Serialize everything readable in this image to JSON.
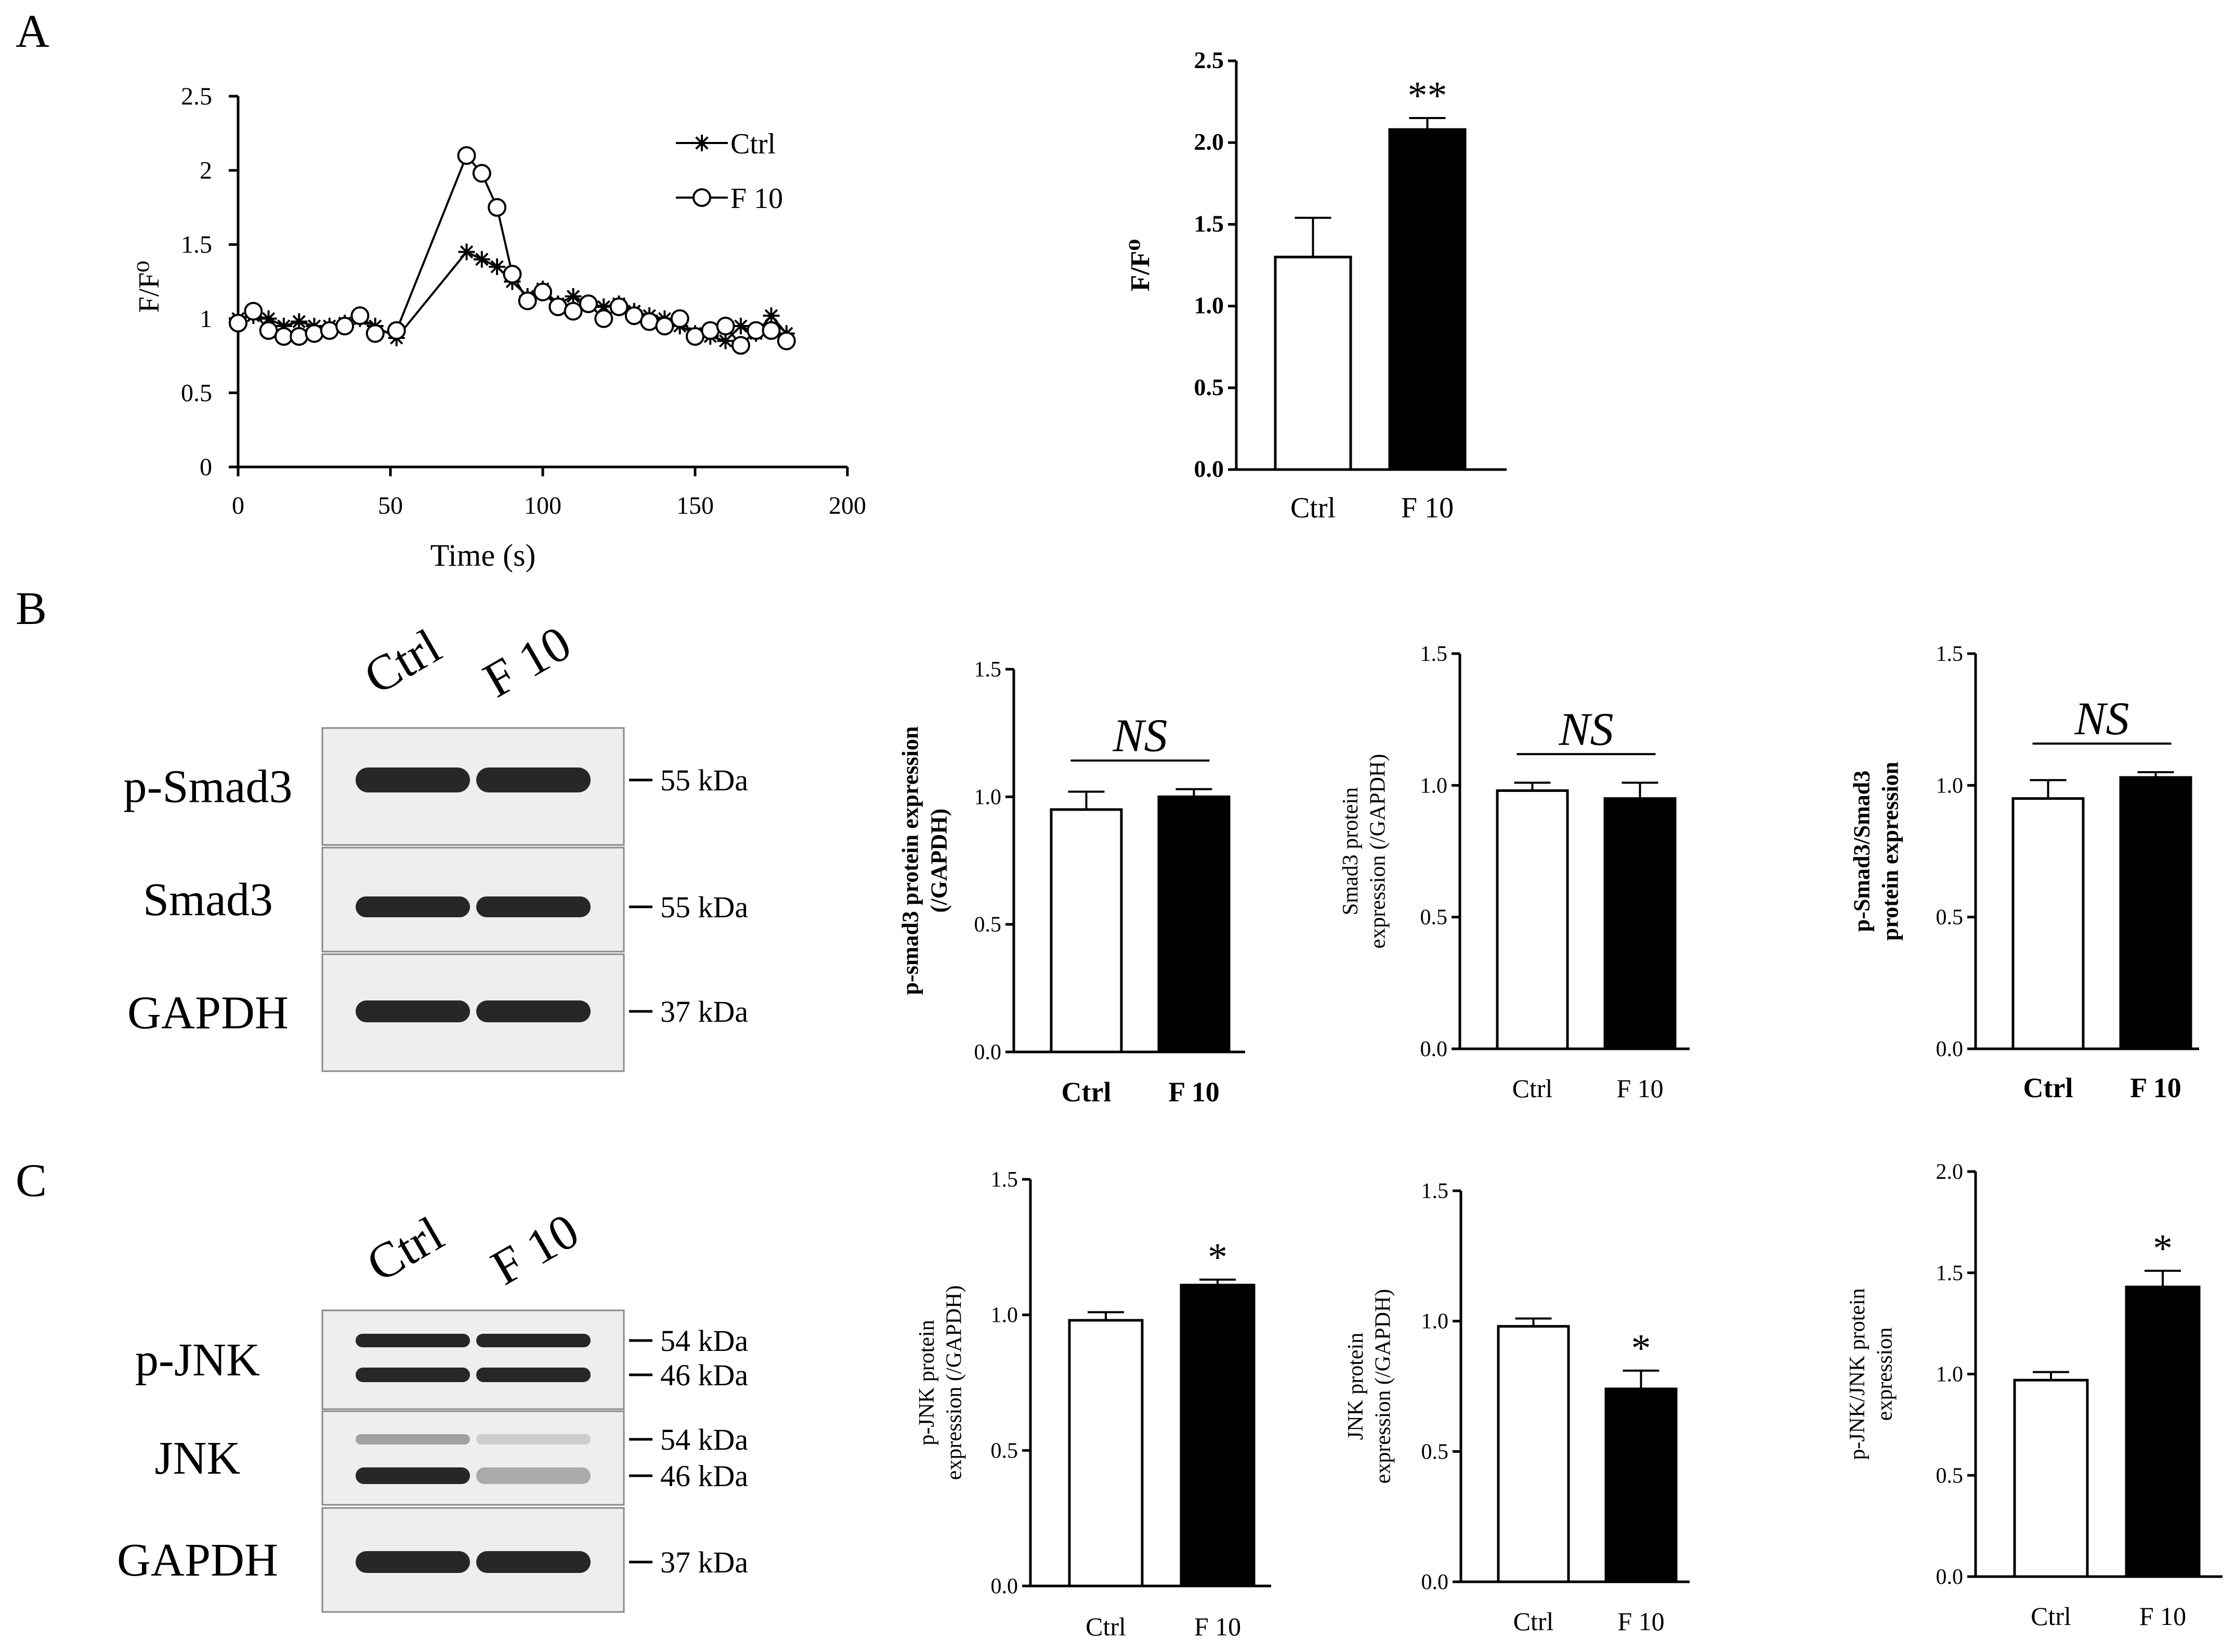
{
  "panel_labels": {
    "a": "A",
    "b": "B",
    "c": "C"
  },
  "blots": {
    "B": {
      "lanes": [
        "Ctrl",
        "F 10"
      ],
      "rows": [
        {
          "label": "p-Smad3",
          "markers": [
            "55 kDa"
          ]
        },
        {
          "label": "Smad3",
          "markers": [
            "55 kDa"
          ]
        },
        {
          "label": "GAPDH",
          "markers": [
            "37 kDa"
          ]
        }
      ]
    },
    "C": {
      "lanes": [
        "Ctrl",
        "F 10"
      ],
      "rows": [
        {
          "label": "p-JNK",
          "markers": [
            "54 kDa",
            "46 kDa"
          ]
        },
        {
          "label": "JNK",
          "markers": [
            "54 kDa",
            "46 kDa"
          ]
        },
        {
          "label": "GAPDH",
          "markers": [
            "37 kDa"
          ]
        }
      ]
    }
  },
  "chart_data": [
    {
      "id": "A_line",
      "type": "line",
      "xlabel": "Time (s)",
      "ylabel": "F/F⁰",
      "xlim": [
        0,
        200
      ],
      "ylim": [
        0,
        2.5
      ],
      "xticks": [
        "0",
        "50",
        "100",
        "150",
        "200"
      ],
      "yticks": [
        "0",
        "0.5",
        "1",
        "1.5",
        "2",
        "2.5"
      ],
      "legend": [
        "Ctrl",
        "F 10"
      ],
      "series": [
        {
          "name": "Ctrl",
          "marker": "star",
          "x": [
            0,
            5,
            10,
            15,
            20,
            25,
            30,
            35,
            40,
            45,
            52,
            75,
            80,
            85,
            90,
            95,
            100,
            105,
            110,
            115,
            120,
            125,
            130,
            135,
            140,
            145,
            150,
            155,
            160,
            165,
            170,
            175,
            180
          ],
          "y": [
            1.0,
            1.02,
            1.0,
            0.95,
            0.98,
            0.95,
            0.95,
            0.97,
            1.0,
            0.95,
            0.87,
            1.45,
            1.4,
            1.35,
            1.25,
            1.15,
            1.2,
            1.1,
            1.15,
            1.1,
            1.08,
            1.1,
            1.05,
            1.02,
            1.0,
            0.95,
            0.9,
            0.88,
            0.85,
            0.95,
            0.9,
            1.02,
            0.9
          ]
        },
        {
          "name": "F 10",
          "marker": "circle",
          "x": [
            0,
            5,
            10,
            15,
            20,
            25,
            30,
            35,
            40,
            45,
            52,
            75,
            80,
            85,
            90,
            95,
            100,
            105,
            110,
            115,
            120,
            125,
            130,
            135,
            140,
            145,
            150,
            155,
            160,
            165,
            170,
            175,
            180
          ],
          "y": [
            0.97,
            1.05,
            0.92,
            0.88,
            0.88,
            0.9,
            0.92,
            0.95,
            1.02,
            0.9,
            0.92,
            2.1,
            1.98,
            1.75,
            1.3,
            1.12,
            1.18,
            1.08,
            1.05,
            1.1,
            1.0,
            1.08,
            1.02,
            0.98,
            0.95,
            1.0,
            0.88,
            0.92,
            0.95,
            0.82,
            0.92,
            0.92,
            0.85
          ]
        }
      ]
    },
    {
      "id": "A_bar",
      "type": "bar",
      "ylabel": "F/F⁰",
      "categories": [
        "Ctrl",
        "F 10"
      ],
      "values": [
        1.3,
        2.08
      ],
      "errors": [
        0.24,
        0.07
      ],
      "ylim": [
        0,
        2.5
      ],
      "yticks": [
        "0.0",
        "0.5",
        "1.0",
        "1.5",
        "2.0",
        "2.5"
      ],
      "significance": [
        "",
        "**"
      ],
      "bracket": ""
    },
    {
      "id": "B_pSmad3",
      "type": "bar",
      "ylabel": [
        "p-smad3 protein expression",
        "(/GAPDH)"
      ],
      "categories": [
        "Ctrl",
        "F 10"
      ],
      "values": [
        0.95,
        1.0
      ],
      "errors": [
        0.07,
        0.03
      ],
      "ylim": [
        0,
        1.5
      ],
      "yticks": [
        "0.0",
        "0.5",
        "1.0",
        "1.5"
      ],
      "significance": [
        "",
        ""
      ],
      "bracket": "NS"
    },
    {
      "id": "B_Smad3",
      "type": "bar",
      "ylabel": [
        "Smad3 protein",
        "expression (/GAPDH)"
      ],
      "categories": [
        "Ctrl",
        "F 10"
      ],
      "values": [
        0.98,
        0.95
      ],
      "errors": [
        0.03,
        0.06
      ],
      "ylim": [
        0,
        1.5
      ],
      "yticks": [
        "0.0",
        "0.5",
        "1.0",
        "1.5"
      ],
      "significance": [
        "",
        ""
      ],
      "bracket": "NS"
    },
    {
      "id": "B_ratio",
      "type": "bar",
      "ylabel": [
        "p-Smad3/Smad3",
        "protein expression"
      ],
      "categories": [
        "Ctrl",
        "F 10"
      ],
      "values": [
        0.95,
        1.03
      ],
      "errors": [
        0.07,
        0.02
      ],
      "ylim": [
        0,
        1.5
      ],
      "yticks": [
        "0.0",
        "0.5",
        "1.0",
        "1.5"
      ],
      "significance": [
        "",
        ""
      ],
      "bracket": "NS"
    },
    {
      "id": "C_pJNK",
      "type": "bar",
      "ylabel": [
        "p-JNK protein",
        "expression (/GAPDH)"
      ],
      "categories": [
        "Ctrl",
        "F 10"
      ],
      "values": [
        0.98,
        1.11
      ],
      "errors": [
        0.03,
        0.02
      ],
      "ylim": [
        0,
        1.5
      ],
      "yticks": [
        "0.0",
        "0.5",
        "1.0",
        "1.5"
      ],
      "significance": [
        "",
        "*"
      ],
      "bracket": ""
    },
    {
      "id": "C_JNK",
      "type": "bar",
      "ylabel": [
        "JNK protein",
        "expression (/GAPDH)"
      ],
      "categories": [
        "Ctrl",
        "F 10"
      ],
      "values": [
        0.98,
        0.74
      ],
      "errors": [
        0.03,
        0.07
      ],
      "ylim": [
        0,
        1.5
      ],
      "yticks": [
        "0.0",
        "0.5",
        "1.0",
        "1.5"
      ],
      "significance": [
        "",
        "*"
      ],
      "bracket": ""
    },
    {
      "id": "C_ratio",
      "type": "bar",
      "ylabel": [
        "p-JNK/JNK protein",
        "expression"
      ],
      "categories": [
        "Ctrl",
        "F 10"
      ],
      "values": [
        0.97,
        1.43
      ],
      "errors": [
        0.04,
        0.08
      ],
      "ylim": [
        0,
        2.0
      ],
      "yticks": [
        "0.0",
        "0.5",
        "1.0",
        "1.5",
        "2.0"
      ],
      "significance": [
        "",
        "*"
      ],
      "bracket": ""
    }
  ]
}
